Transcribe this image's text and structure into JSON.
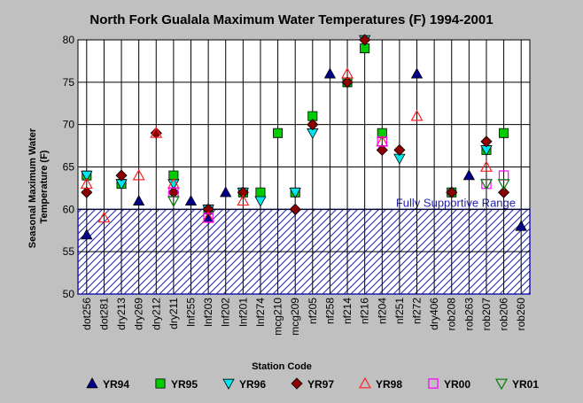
{
  "chart_data": {
    "type": "scatter",
    "title": "North Fork Gualala Maximum Water Temperatures (F) 1994-2001",
    "xlabel": "Station Code",
    "ylabel_lines": [
      "Seasonal Maximum Water",
      "Temperature  (F)"
    ],
    "ylim": [
      50,
      80
    ],
    "yticks": [
      50,
      55,
      60,
      65,
      70,
      75,
      80
    ],
    "grid": true,
    "legend_position": "bottom",
    "band": {
      "from": 50,
      "to": 60,
      "label": "Fully Supportive Range",
      "color": "#1f1fb0"
    },
    "categories": [
      "dot256",
      "dot281",
      "dry213",
      "dry269",
      "dry212",
      "dry211",
      "lnf255",
      "lnf203",
      "lnf202",
      "lnf201",
      "lnf274",
      "mcg210",
      "mcg209",
      "nf205",
      "nf258",
      "nf214",
      "nf216",
      "nf204",
      "nf251",
      "nf272",
      "dry406",
      "rob208",
      "rob263",
      "rob207",
      "rob206",
      "rob260"
    ],
    "series": [
      {
        "name": "YR94",
        "marker": "triangle-up",
        "color": "#00008b",
        "fill": true,
        "values": [
          57,
          null,
          null,
          61,
          null,
          null,
          61,
          59,
          62,
          null,
          null,
          null,
          null,
          null,
          76,
          null,
          null,
          null,
          null,
          76,
          null,
          null,
          64,
          null,
          null,
          58
        ]
      },
      {
        "name": "YR95",
        "marker": "square",
        "color": "#00cc00",
        "fill": true,
        "values": [
          64,
          null,
          63,
          null,
          null,
          64,
          null,
          60,
          null,
          62,
          62,
          69,
          62,
          71,
          null,
          75,
          79,
          69,
          null,
          null,
          null,
          62,
          null,
          67,
          69,
          null
        ]
      },
      {
        "name": "YR96",
        "marker": "triangle-down",
        "color": "#00e5ee",
        "fill": true,
        "values": [
          64,
          null,
          63,
          null,
          null,
          63,
          null,
          60,
          null,
          62,
          61,
          null,
          62,
          69,
          null,
          null,
          80,
          null,
          66,
          null,
          null,
          null,
          null,
          67,
          null,
          null
        ]
      },
      {
        "name": "YR97",
        "marker": "diamond",
        "color": "#8b0000",
        "fill": true,
        "values": [
          62,
          null,
          64,
          null,
          69,
          62,
          null,
          60,
          null,
          62,
          null,
          null,
          60,
          70,
          null,
          75,
          80,
          67,
          67,
          null,
          null,
          62,
          null,
          68,
          62,
          null
        ]
      },
      {
        "name": "YR98",
        "marker": "triangle-up",
        "color": "#ff2020",
        "fill": false,
        "values": [
          63,
          59,
          null,
          64,
          69,
          63,
          null,
          59,
          null,
          61,
          null,
          null,
          null,
          null,
          null,
          76,
          null,
          68,
          null,
          71,
          null,
          null,
          null,
          65,
          null,
          null
        ]
      },
      {
        "name": "YR00",
        "marker": "square",
        "color": "#ff00ff",
        "fill": false,
        "values": [
          null,
          null,
          null,
          null,
          null,
          62,
          null,
          59,
          null,
          null,
          null,
          null,
          null,
          null,
          null,
          null,
          null,
          68,
          null,
          null,
          null,
          null,
          null,
          63,
          64,
          null
        ]
      },
      {
        "name": "YR01",
        "marker": "triangle-down",
        "color": "#008000",
        "fill": false,
        "values": [
          null,
          null,
          null,
          null,
          null,
          61,
          null,
          null,
          null,
          null,
          null,
          null,
          null,
          null,
          null,
          null,
          null,
          null,
          null,
          null,
          null,
          null,
          null,
          63,
          63,
          null
        ]
      }
    ]
  }
}
